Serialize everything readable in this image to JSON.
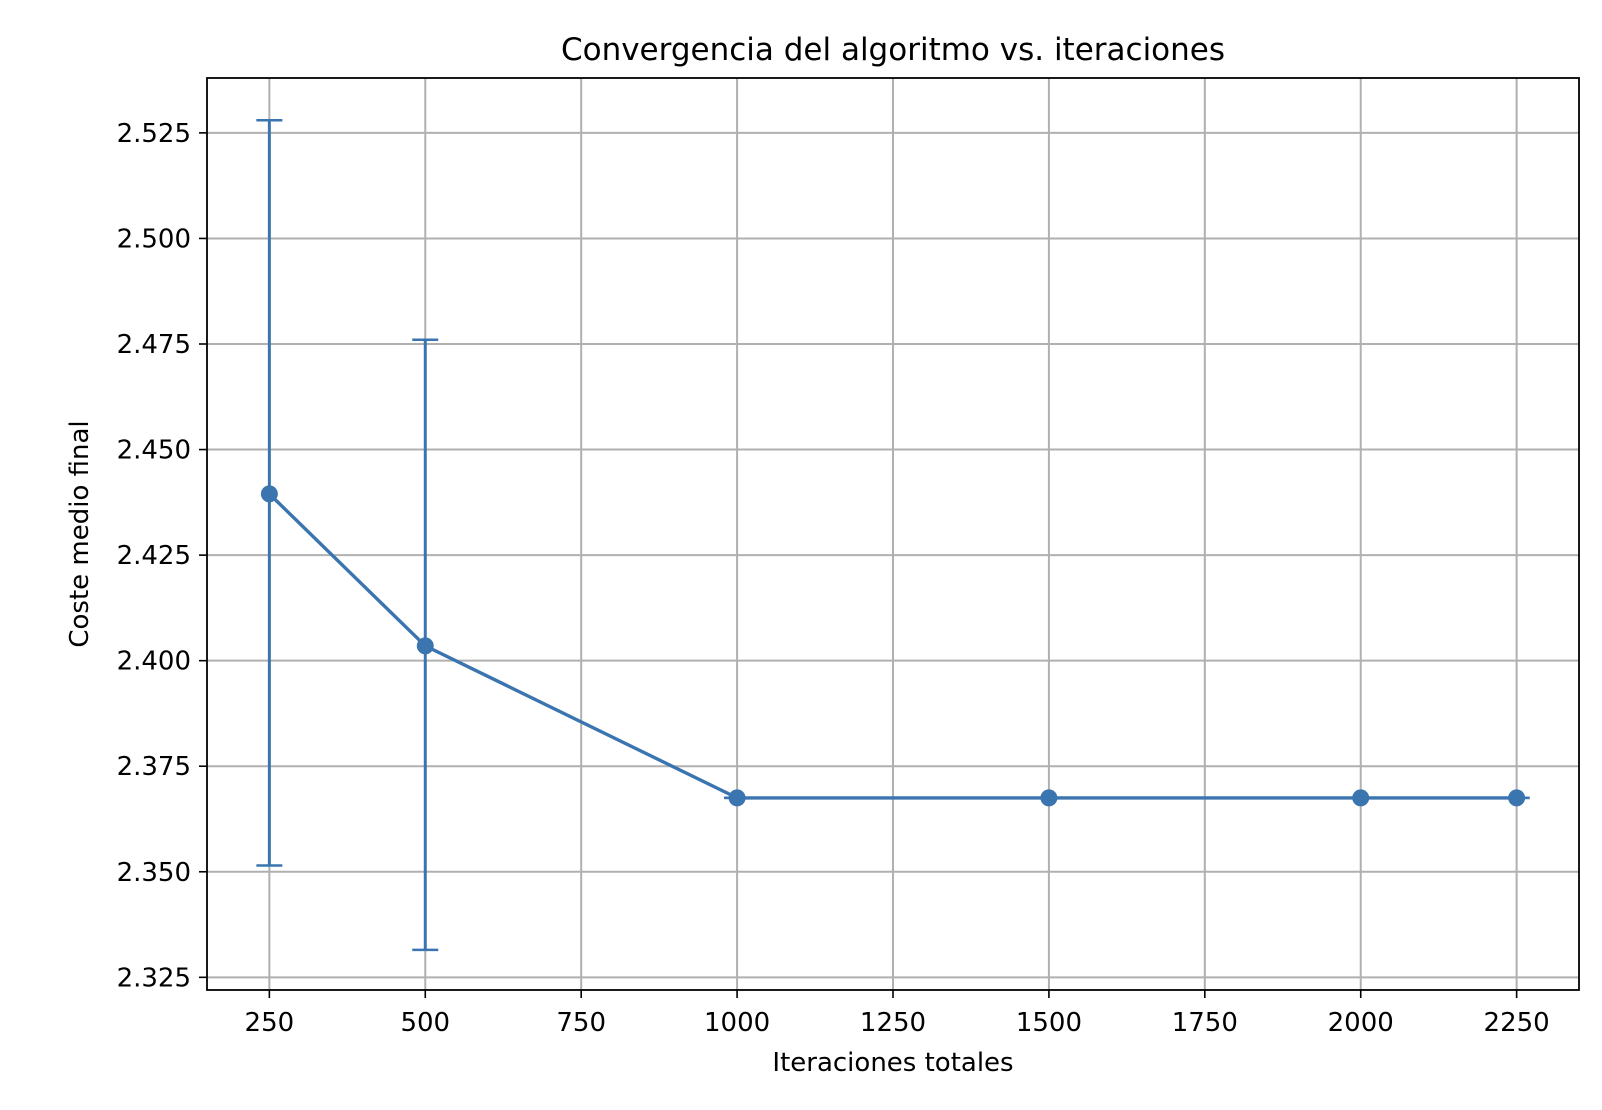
{
  "chart_data": {
    "type": "line",
    "title": "Convergencia del algoritmo vs. iteraciones",
    "xlabel": "Iteraciones totales",
    "ylabel": "Coste medio final",
    "xlim": [
      150,
      2350
    ],
    "ylim": [
      2.322,
      2.538
    ],
    "x_ticks": [
      250,
      500,
      750,
      1000,
      1250,
      1500,
      1750,
      2000,
      2250
    ],
    "x_tick_labels": [
      "250",
      "500",
      "750",
      "1000",
      "1250",
      "1500",
      "1750",
      "2000",
      "2250"
    ],
    "y_ticks": [
      2.325,
      2.35,
      2.375,
      2.4,
      2.425,
      2.45,
      2.475,
      2.5,
      2.525
    ],
    "y_tick_labels": [
      "2.325",
      "2.350",
      "2.375",
      "2.400",
      "2.425",
      "2.450",
      "2.475",
      "2.500",
      "2.525"
    ],
    "grid": true,
    "series": [
      {
        "x": [
          250,
          500,
          1000,
          1500,
          2000,
          2250
        ],
        "y": [
          2.4395,
          2.4035,
          2.3675,
          2.3675,
          2.3675,
          2.3675
        ],
        "yerr_low": [
          2.3515,
          2.3315,
          2.3675,
          2.3675,
          2.3675,
          2.3675
        ],
        "yerr_high": [
          2.528,
          2.476,
          2.3675,
          2.3675,
          2.3675,
          2.3675
        ],
        "color": "#3a75b0",
        "marker": "circle"
      }
    ]
  }
}
